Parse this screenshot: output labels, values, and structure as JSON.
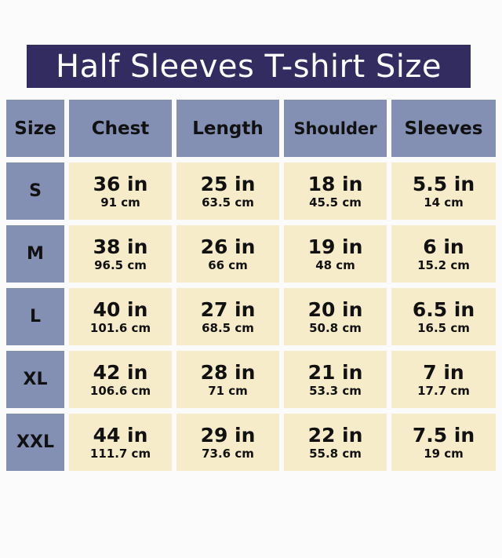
{
  "title": "Half Sleeves T-shirt Size",
  "colors": {
    "banner": "#332c61",
    "header": "#8390b4",
    "cell": "#f6ecca"
  },
  "headers": [
    "Size",
    "Chest",
    "Length",
    "Shoulder",
    "Sleeves"
  ],
  "rows": [
    {
      "size": "S",
      "cells": [
        {
          "in": "36 in",
          "cm": "91 cm"
        },
        {
          "in": "25 in",
          "cm": "63.5 cm"
        },
        {
          "in": "18 in",
          "cm": "45.5 cm"
        },
        {
          "in": "5.5 in",
          "cm": "14 cm"
        }
      ]
    },
    {
      "size": "M",
      "cells": [
        {
          "in": "38 in",
          "cm": "96.5 cm"
        },
        {
          "in": "26 in",
          "cm": "66 cm"
        },
        {
          "in": "19 in",
          "cm": "48 cm"
        },
        {
          "in": "6 in",
          "cm": "15.2 cm"
        }
      ]
    },
    {
      "size": "L",
      "cells": [
        {
          "in": "40 in",
          "cm": "101.6 cm"
        },
        {
          "in": "27 in",
          "cm": "68.5 cm"
        },
        {
          "in": "20 in",
          "cm": "50.8 cm"
        },
        {
          "in": "6.5 in",
          "cm": "16.5 cm"
        }
      ]
    },
    {
      "size": "XL",
      "cells": [
        {
          "in": "42 in",
          "cm": "106.6 cm"
        },
        {
          "in": "28 in",
          "cm": "71 cm"
        },
        {
          "in": "21 in",
          "cm": "53.3 cm"
        },
        {
          "in": "7 in",
          "cm": "17.7 cm"
        }
      ]
    },
    {
      "size": "XXL",
      "cells": [
        {
          "in": "44 in",
          "cm": "111.7 cm"
        },
        {
          "in": "29 in",
          "cm": "73.6 cm"
        },
        {
          "in": "22 in",
          "cm": "55.8 cm"
        },
        {
          "in": "7.5 in",
          "cm": "19 cm"
        }
      ]
    }
  ]
}
